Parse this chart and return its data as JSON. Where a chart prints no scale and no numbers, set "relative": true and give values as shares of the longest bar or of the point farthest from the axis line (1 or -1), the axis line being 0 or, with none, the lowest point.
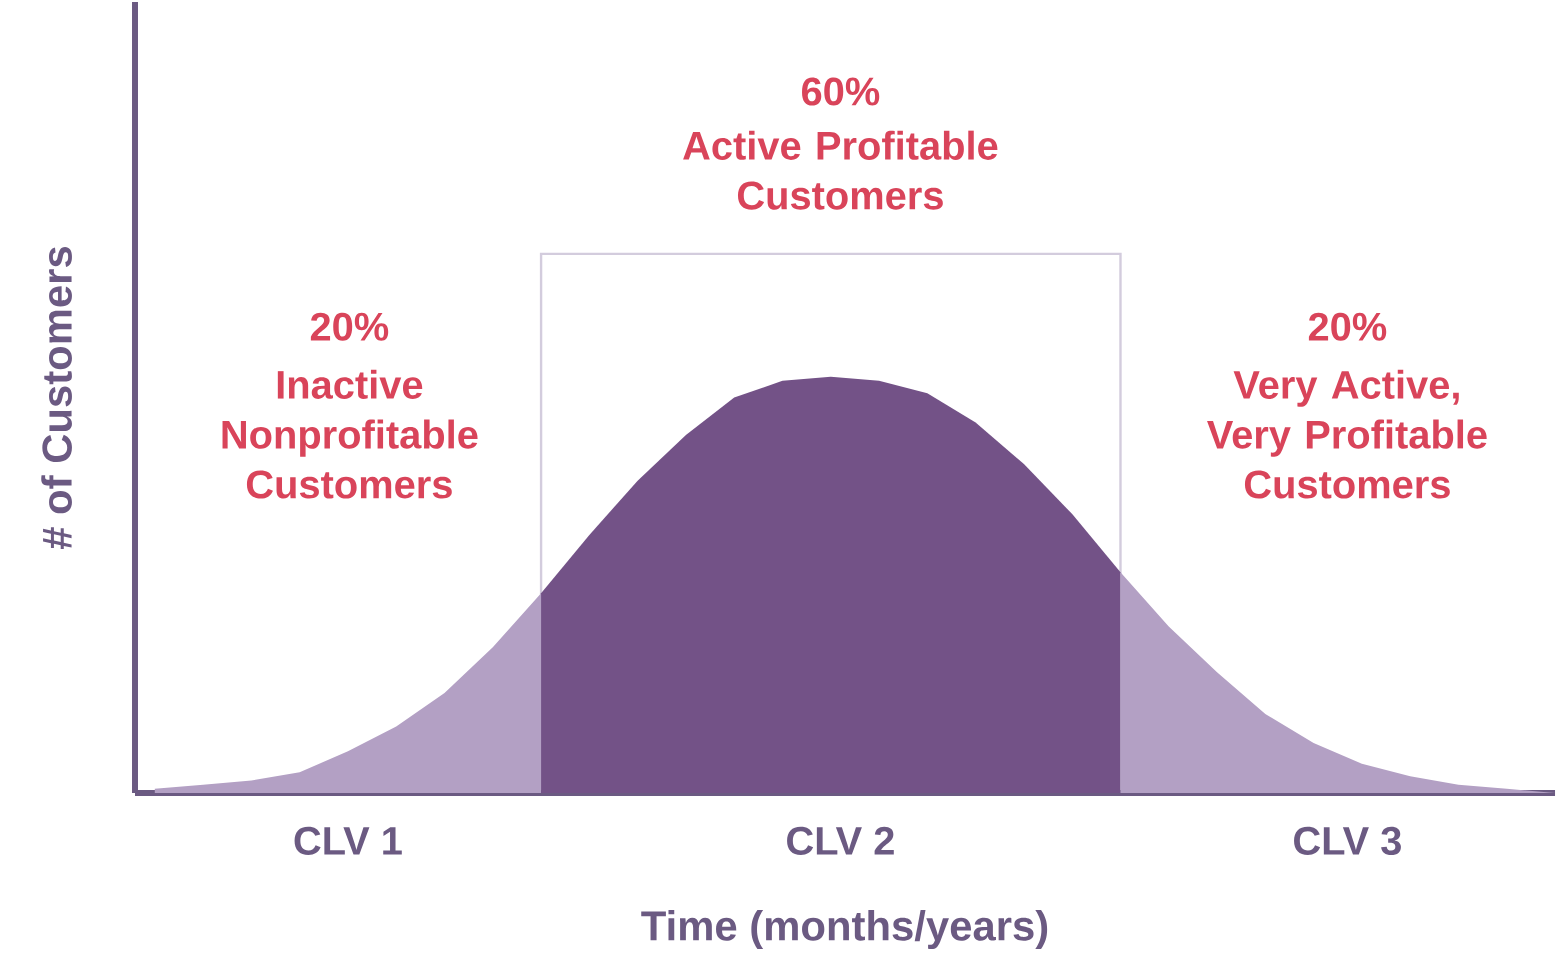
{
  "chart_data": {
    "type": "area",
    "relative": true,
    "xlabel": "Time (months/years)",
    "ylabel": "# of Customers",
    "categories": [
      null,
      null,
      null,
      null,
      null,
      null,
      null,
      null,
      null,
      null,
      null,
      null,
      null,
      null,
      null,
      null,
      null,
      null,
      null,
      null,
      null,
      null,
      null,
      null,
      null,
      null,
      null,
      null,
      null,
      null
    ],
    "series": [
      {
        "color": "#b3a0c4",
        "values": [
          0.01,
          0.02,
          0.03,
          0.05,
          0.1,
          0.16,
          0.24,
          0.35,
          0.48,
          null,
          null,
          null,
          null,
          null,
          null,
          null,
          null,
          null,
          null,
          null,
          null,
          null,
          null,
          null,
          null,
          null,
          null,
          null,
          null,
          null
        ]
      },
      {
        "color": "#735287",
        "values": [
          null,
          null,
          null,
          null,
          null,
          null,
          null,
          null,
          0.48,
          0.62,
          0.75,
          0.86,
          0.95,
          0.99,
          1.0,
          0.99,
          0.96,
          0.89,
          0.79,
          0.67,
          0.53,
          null,
          null,
          null,
          null,
          null,
          null,
          null,
          null,
          null
        ]
      },
      {
        "color": "#b3a0c4",
        "values": [
          null,
          null,
          null,
          null,
          null,
          null,
          null,
          null,
          null,
          null,
          null,
          null,
          null,
          null,
          null,
          null,
          null,
          null,
          null,
          null,
          0.53,
          0.4,
          0.29,
          0.19,
          0.12,
          0.07,
          0.04,
          0.02,
          0.01,
          0.0
        ]
      }
    ],
    "annotations": [
      "20%",
      "Inactive Nonprofitable Customers",
      "60%",
      "Active Profitable Customers",
      "20%",
      "Very Active, Very Profitable Customers",
      "CLV 1",
      "CLV 2",
      "CLV 3"
    ]
  }
}
